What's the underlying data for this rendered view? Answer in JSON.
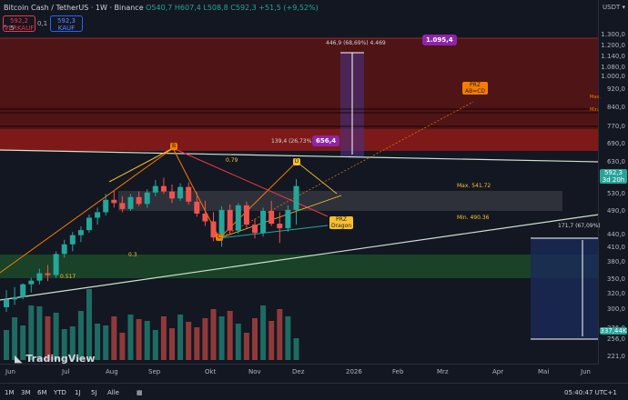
{
  "header": {
    "symbol": "Bitcoin Cash / TetherUS · 1W · Binance",
    "ohlc": "O540,7 H607,4 L508,8 C592,3 +51,5 (+9,52%)"
  },
  "trade": {
    "sell_price": "592,2",
    "sell_label": "VERKAUF",
    "spread": "0,1",
    "buy_price": "592,3",
    "buy_label": "KAUF",
    "collapse": "^ 5"
  },
  "currency": "USDT ▾",
  "price_axis": [
    "1.300,0",
    "1.200,0",
    "1.140,0",
    "1.080,0",
    "1.000,0",
    "920,0",
    "840,0",
    "770,0",
    "690,0",
    "630,0",
    "590,0",
    "530,0",
    "490,0",
    "440,0",
    "410,0",
    "380,0",
    "350,0",
    "320,0",
    "300,0",
    "276,0",
    "256,0",
    "221,0"
  ],
  "time_axis": [
    "Jun",
    "Jul",
    "Aug",
    "Sep",
    "Okt",
    "Nov",
    "Dez",
    "2026",
    "Feb",
    "Mrz",
    "Apr",
    "Mai",
    "Jun"
  ],
  "last_price": {
    "value": "592,3",
    "countdown": "3d 20h"
  },
  "volume_tag": "337,44K",
  "annotations": {
    "top_measure": "446,9 (68,69%) 4.469",
    "target_top": "1.095,4",
    "mid_measure": "139,4 (26,73%) 1.394",
    "target_mid": "656,4",
    "prz_abcd": "PRZ\nAB=CD",
    "prz_dragon": "PRZ\nDragon",
    "max_label": "Max. 541.72",
    "min_label": "Min. 490.36",
    "max_small": "Max.",
    "min_small": "Min.",
    "bottom_measure": "171,7 (67,09%)",
    "fib_079": "0.79",
    "fib_03": "0.3",
    "fib_0517": "0.517",
    "pt_b": "B",
    "pt_c": "C",
    "pt_d": "D"
  },
  "brand": "TradingView",
  "bottom_bar": {
    "ranges": [
      "1M",
      "3M",
      "6M",
      "YTD",
      "1J",
      "5J",
      "Alle"
    ],
    "clock": "05:40:47 UTC+1"
  },
  "colors": {
    "up": "#26a69a",
    "down": "#ef5350",
    "accent": "#8e24aa"
  },
  "chart_data": {
    "type": "candlestick",
    "candles": [
      {
        "o": 328,
        "h": 365,
        "l": 318,
        "c": 345
      },
      {
        "o": 345,
        "h": 372,
        "l": 333,
        "c": 350
      },
      {
        "o": 350,
        "h": 380,
        "l": 345,
        "c": 378
      },
      {
        "o": 378,
        "h": 392,
        "l": 360,
        "c": 386
      },
      {
        "o": 386,
        "h": 412,
        "l": 378,
        "c": 402
      },
      {
        "o": 402,
        "h": 420,
        "l": 385,
        "c": 398
      },
      {
        "o": 398,
        "h": 450,
        "l": 392,
        "c": 444
      },
      {
        "o": 444,
        "h": 475,
        "l": 436,
        "c": 465
      },
      {
        "o": 465,
        "h": 492,
        "l": 450,
        "c": 485
      },
      {
        "o": 485,
        "h": 504,
        "l": 470,
        "c": 496
      },
      {
        "o": 496,
        "h": 530,
        "l": 490,
        "c": 523
      },
      {
        "o": 523,
        "h": 545,
        "l": 508,
        "c": 535
      },
      {
        "o": 535,
        "h": 575,
        "l": 528,
        "c": 562
      },
      {
        "o": 562,
        "h": 582,
        "l": 545,
        "c": 555
      },
      {
        "o": 555,
        "h": 570,
        "l": 535,
        "c": 542
      },
      {
        "o": 542,
        "h": 575,
        "l": 538,
        "c": 568
      },
      {
        "o": 568,
        "h": 580,
        "l": 548,
        "c": 553
      },
      {
        "o": 553,
        "h": 585,
        "l": 545,
        "c": 578
      },
      {
        "o": 578,
        "h": 605,
        "l": 570,
        "c": 592
      },
      {
        "o": 592,
        "h": 610,
        "l": 575,
        "c": 580
      },
      {
        "o": 580,
        "h": 595,
        "l": 555,
        "c": 565
      },
      {
        "o": 565,
        "h": 598,
        "l": 560,
        "c": 590
      },
      {
        "o": 590,
        "h": 600,
        "l": 552,
        "c": 558
      },
      {
        "o": 558,
        "h": 578,
        "l": 525,
        "c": 532
      },
      {
        "o": 532,
        "h": 560,
        "l": 505,
        "c": 515
      },
      {
        "o": 515,
        "h": 535,
        "l": 472,
        "c": 480
      },
      {
        "o": 480,
        "h": 548,
        "l": 460,
        "c": 540
      },
      {
        "o": 540,
        "h": 552,
        "l": 485,
        "c": 495
      },
      {
        "o": 495,
        "h": 555,
        "l": 488,
        "c": 550
      },
      {
        "o": 550,
        "h": 558,
        "l": 500,
        "c": 508
      },
      {
        "o": 508,
        "h": 520,
        "l": 478,
        "c": 490
      },
      {
        "o": 490,
        "h": 545,
        "l": 482,
        "c": 538
      },
      {
        "o": 538,
        "h": 560,
        "l": 505,
        "c": 510
      },
      {
        "o": 510,
        "h": 535,
        "l": 468,
        "c": 500
      },
      {
        "o": 500,
        "h": 550,
        "l": 492,
        "c": 540
      },
      {
        "o": 540,
        "h": 607,
        "l": 508,
        "c": 592
      }
    ],
    "volumes": [
      33,
      47,
      38,
      60,
      59,
      48,
      52,
      34,
      37,
      54,
      78,
      40,
      38,
      48,
      30,
      50,
      45,
      43,
      33,
      48,
      35,
      50,
      42,
      36,
      46,
      56,
      48,
      54,
      40,
      30,
      46,
      60,
      43,
      56,
      48,
      24
    ]
  }
}
